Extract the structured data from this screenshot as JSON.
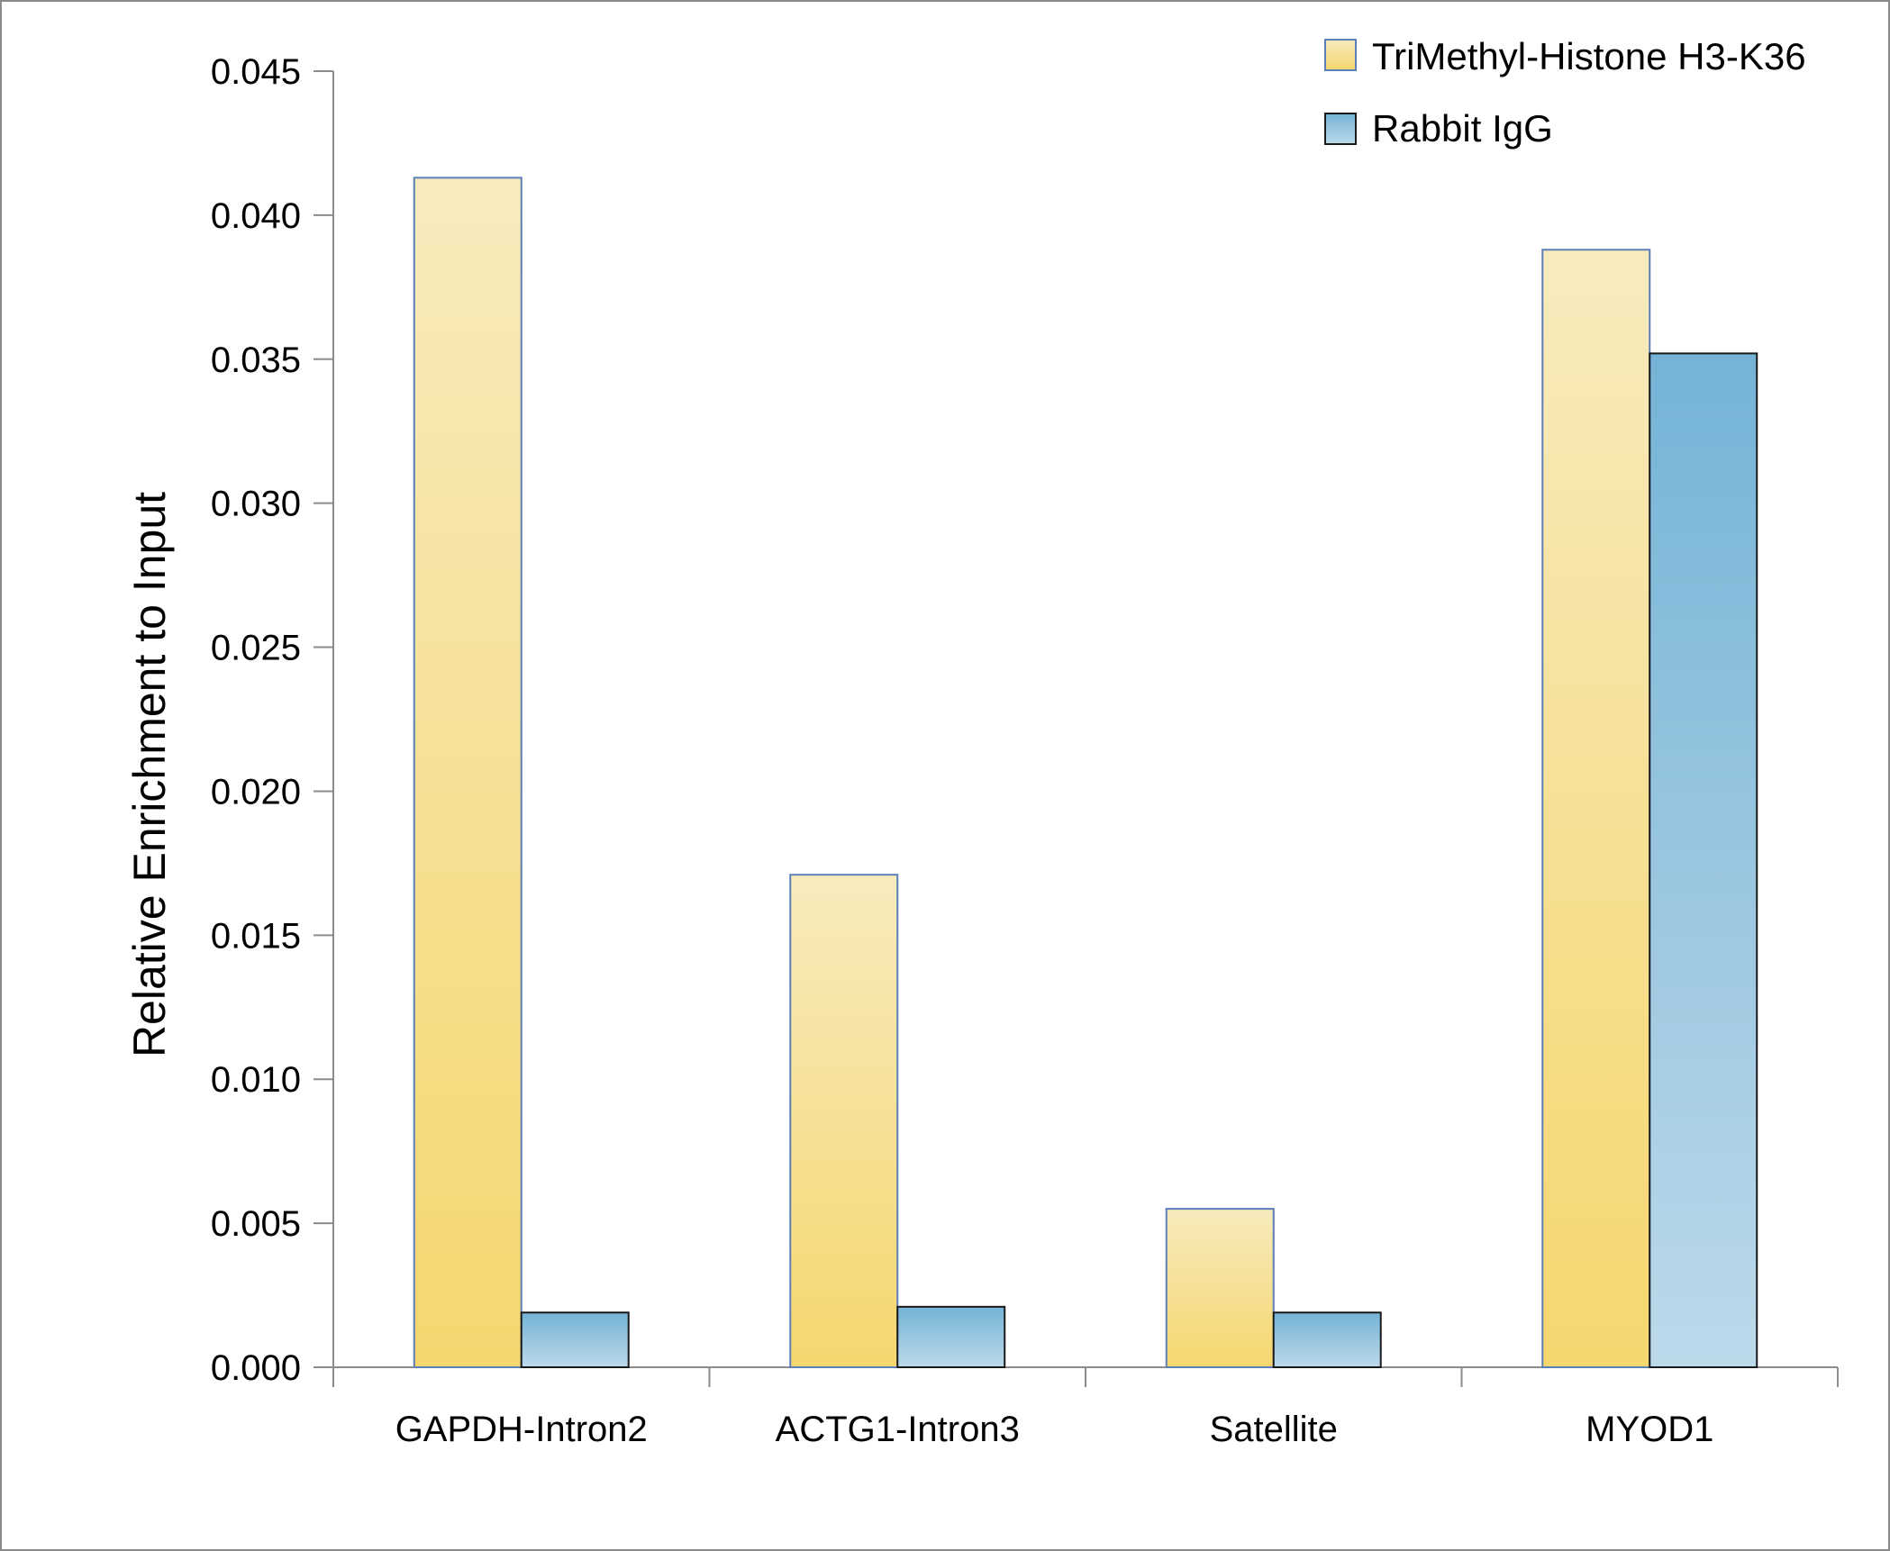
{
  "chart_data": {
    "type": "bar",
    "title": "",
    "xlabel": "",
    "ylabel": "Relative Enrichment to Input",
    "ylim": [
      0,
      0.045
    ],
    "yticks": [
      "0.000",
      "0.005",
      "0.010",
      "0.015",
      "0.020",
      "0.025",
      "0.030",
      "0.035",
      "0.040",
      "0.045"
    ],
    "categories": [
      "GAPDH-Intron2",
      "ACTG1-Intron3",
      "Satellite",
      "MYOD1"
    ],
    "series": [
      {
        "name": "TriMethyl-Histone H3-K36",
        "values": [
          0.0413,
          0.0171,
          0.0055,
          0.0388
        ]
      },
      {
        "name": "Rabbit IgG",
        "values": [
          0.0019,
          0.0021,
          0.0019,
          0.0352
        ]
      }
    ],
    "grid": false,
    "legend": "top-right",
    "colors": {
      "series0_top": "#f7ebbe",
      "series0_bottom": "#f6d66e",
      "series0_stroke": "#5b7fb6",
      "series1_top": "#75b3d6",
      "series1_bottom": "#bcd9ea",
      "series1_stroke": "#1a1a1a",
      "axis": "#8c8c8c"
    }
  }
}
